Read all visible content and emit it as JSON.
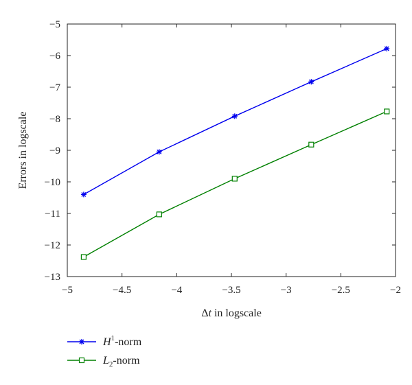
{
  "chart_data": {
    "type": "line",
    "xlabel_prefix": "Δ",
    "xlabel_var": "t",
    "xlabel_suffix": " in logscale",
    "ylabel": "Errors in logscale",
    "xlim": [
      -5,
      -2
    ],
    "ylim": [
      -13,
      -5
    ],
    "xticks": [
      -5,
      -4.5,
      -4,
      -3.5,
      -3,
      -2.5,
      -2
    ],
    "yticks": [
      -13,
      -12,
      -11,
      -10,
      -9,
      -8,
      -7,
      -6,
      -5
    ],
    "grid": false,
    "legend_position": "bottom-left below plot",
    "series": [
      {
        "name": "H1-norm",
        "label_main": "H",
        "label_sup": "1",
        "label_tail": "-norm",
        "color": "#0000ee",
        "marker": "asterisk",
        "x": [
          -4.85,
          -4.16,
          -3.47,
          -2.77,
          -2.08
        ],
        "y": [
          -10.4,
          -9.05,
          -7.92,
          -6.83,
          -5.78
        ]
      },
      {
        "name": "L2-norm",
        "label_main": "L",
        "label_sub": "2",
        "label_tail": "-norm",
        "color": "#008000",
        "marker": "square",
        "x": [
          -4.85,
          -4.16,
          -3.47,
          -2.77,
          -2.08
        ],
        "y": [
          -12.38,
          -11.03,
          -9.9,
          -8.82,
          -7.77
        ]
      }
    ]
  }
}
